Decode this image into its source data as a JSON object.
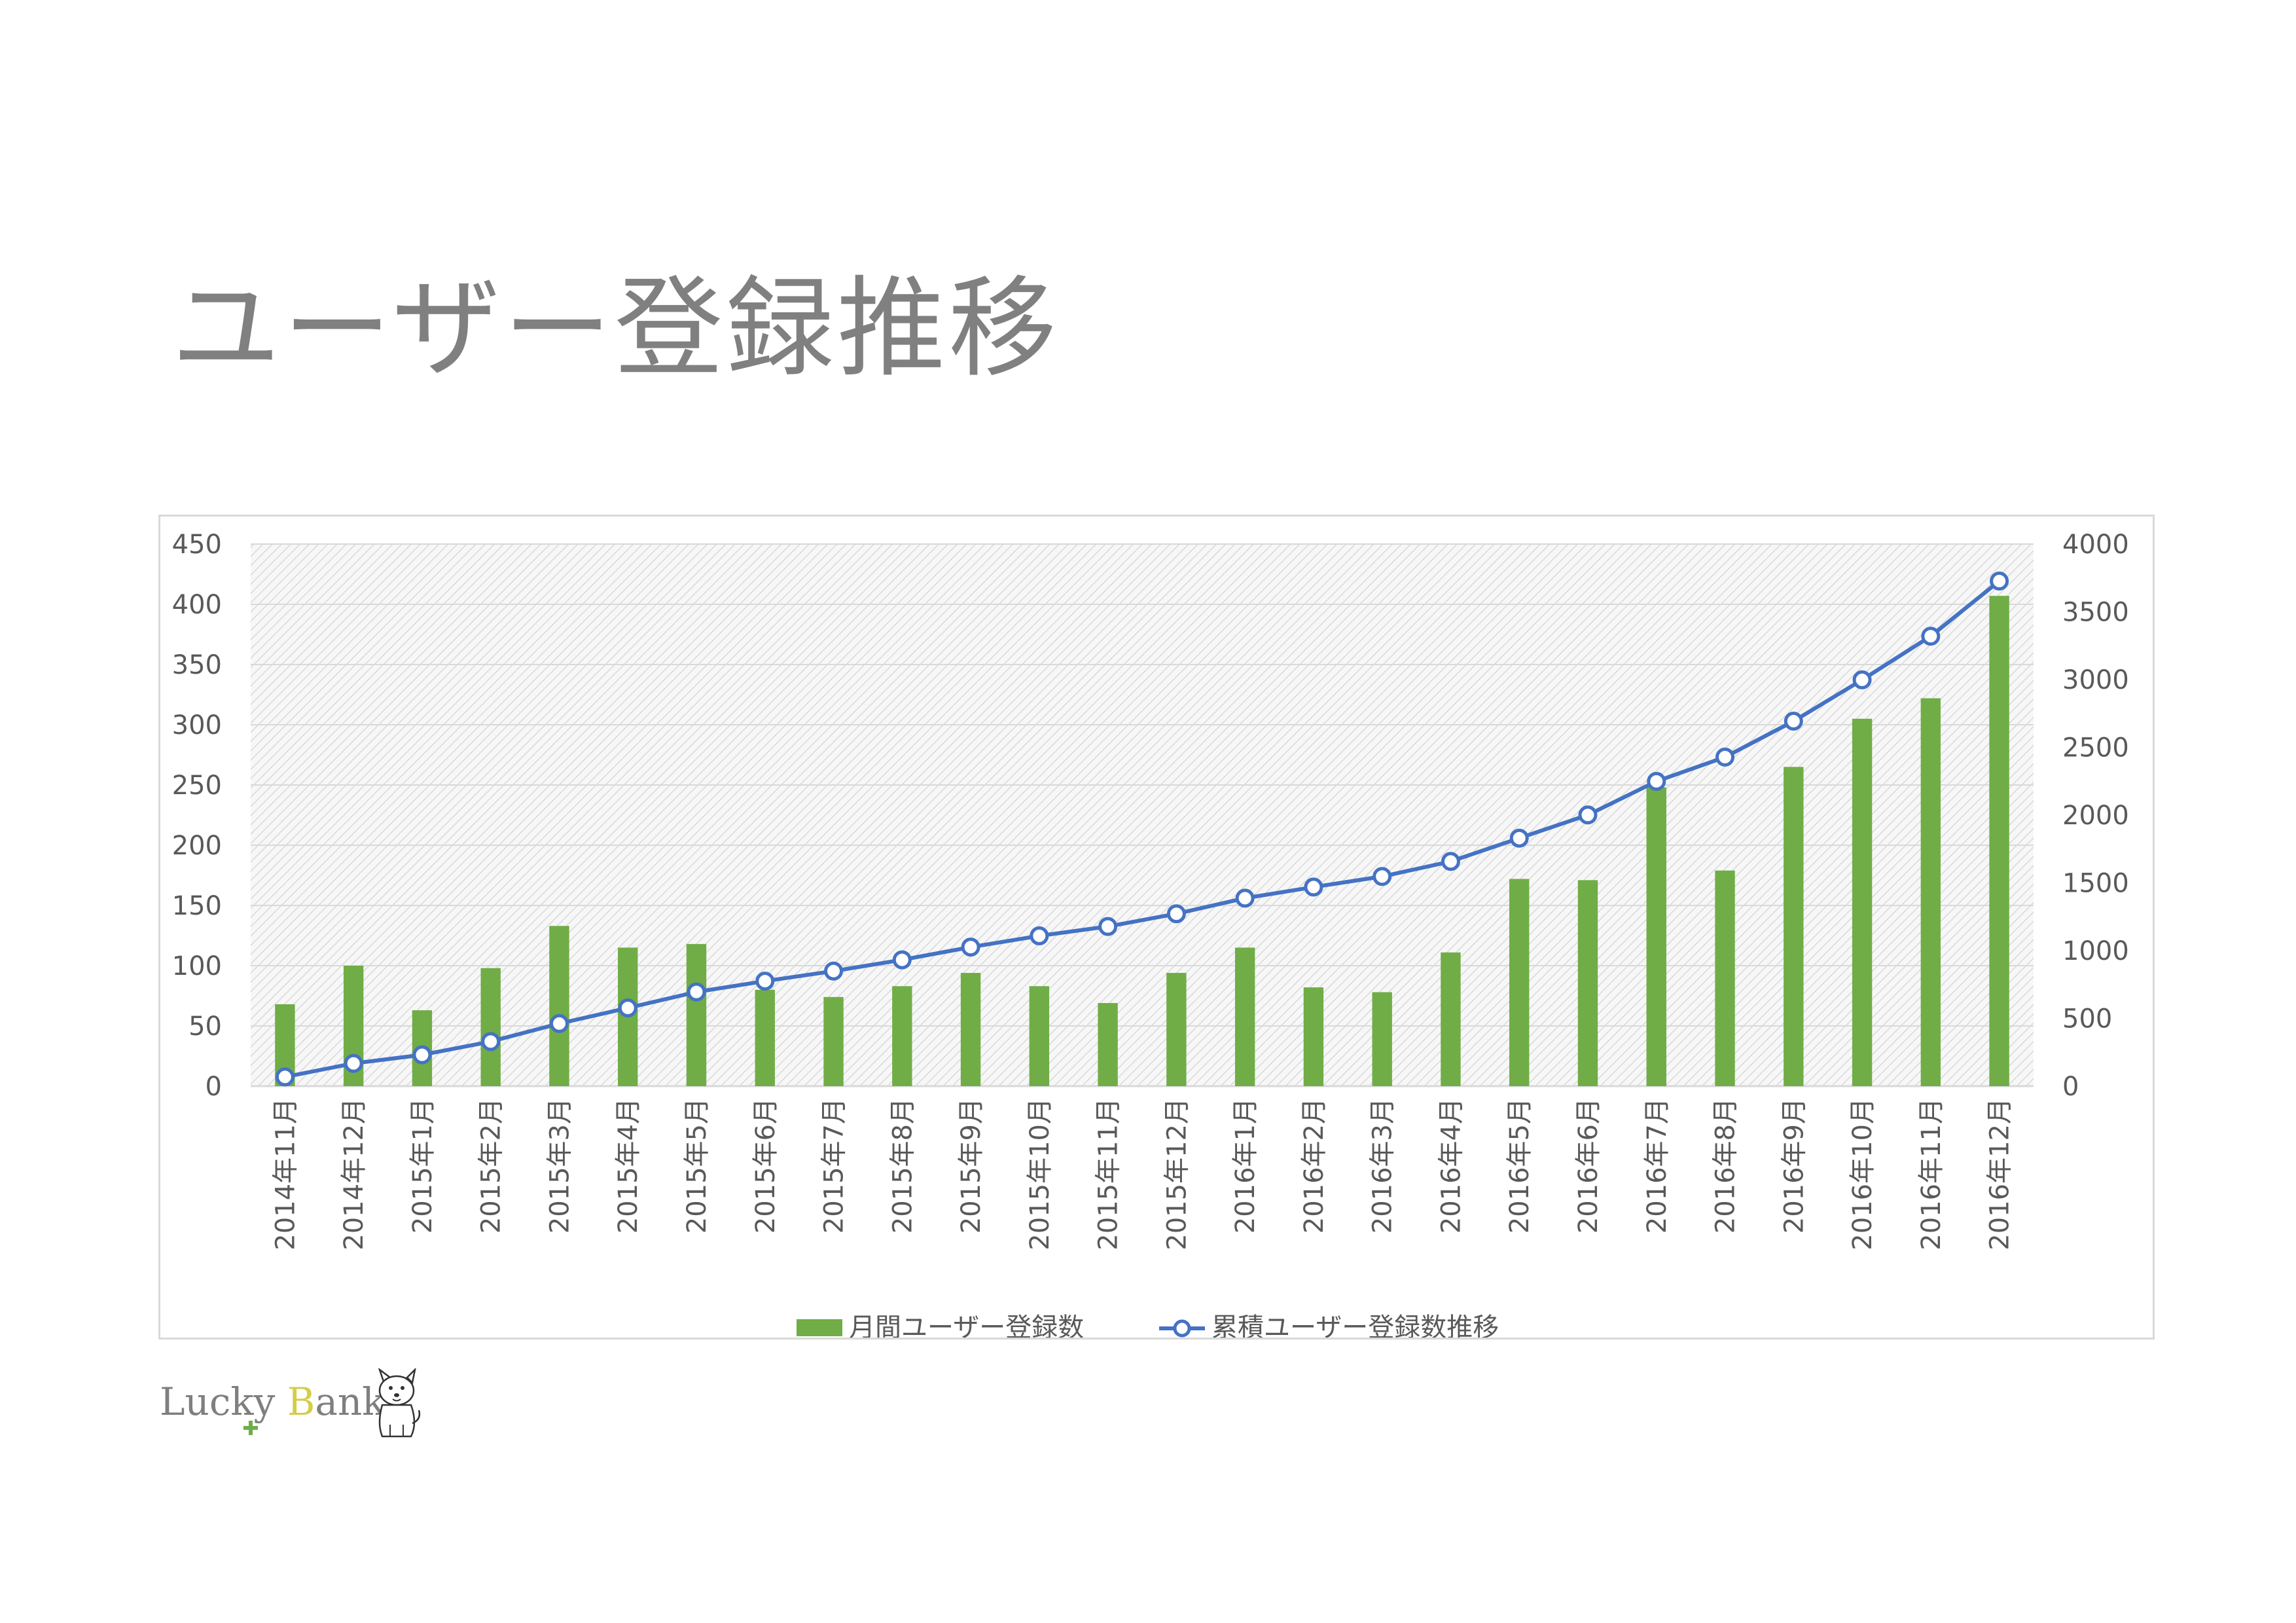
{
  "page": {
    "title": "ユーザー登録推移"
  },
  "logo": {
    "lucky": "Lucky",
    "b": "B",
    "ank": "ank",
    "alt": "Lucky Bank"
  },
  "colors": {
    "bar": "#70ad47",
    "line": "#4472c4",
    "title": "#808080",
    "axis_text": "#595959",
    "grid": "#d9d9d9"
  },
  "chart_data": {
    "type": "bar",
    "title": "",
    "categories": [
      "2014年11月",
      "2014年12月",
      "2015年1月",
      "2015年2月",
      "2015年3月",
      "2015年4月",
      "2015年5月",
      "2015年6月",
      "2015年7月",
      "2015年8月",
      "2015年9月",
      "2015年10月",
      "2015年11月",
      "2015年12月",
      "2016年1月",
      "2016年2月",
      "2016年3月",
      "2016年4月",
      "2016年5月",
      "2016年6月",
      "2016年7月",
      "2016年8月",
      "2016年9月",
      "2016年10月",
      "2016年11月",
      "2016年12月"
    ],
    "series": [
      {
        "name": "月間ユーザー登録数",
        "type": "bar",
        "axis": "left",
        "color": "#70ad47",
        "values": [
          68,
          100,
          63,
          98,
          133,
          115,
          118,
          80,
          74,
          83,
          94,
          83,
          69,
          94,
          115,
          82,
          78,
          111,
          172,
          171,
          248,
          179,
          265,
          305,
          322,
          407
        ]
      },
      {
        "name": "累積ユーザー登録数推移",
        "type": "line",
        "axis": "right",
        "color": "#4472c4",
        "marker": "circle",
        "values": [
          68,
          168,
          231,
          329,
          462,
          577,
          695,
          775,
          849,
          932,
          1026,
          1109,
          1178,
          1272,
          1387,
          1469,
          1547,
          1658,
          1830,
          2001,
          2249,
          2428,
          2693,
          2998,
          3320,
          3727
        ]
      }
    ],
    "y_left": {
      "min": 0,
      "max": 450,
      "ticks": [
        0,
        50,
        100,
        150,
        200,
        250,
        300,
        350,
        400,
        450
      ]
    },
    "y_right": {
      "min": 0,
      "max": 4000,
      "ticks": [
        0,
        500,
        1000,
        1500,
        2000,
        2500,
        3000,
        3500,
        4000
      ]
    },
    "grid": true,
    "legend": "bottom",
    "xlabel": "",
    "ylabel": ""
  }
}
